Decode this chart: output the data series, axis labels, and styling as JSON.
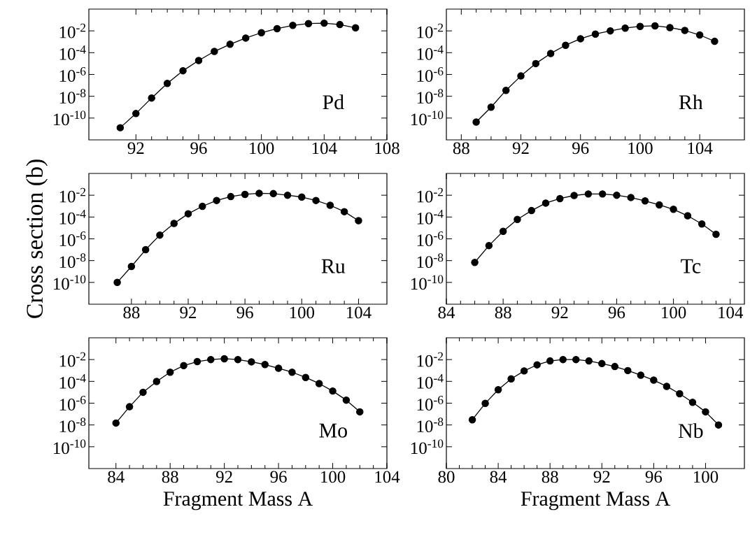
{
  "chart_data": [
    {
      "type": "line",
      "x": [
        91,
        92,
        93,
        94,
        95,
        96,
        97,
        98,
        99,
        100,
        101,
        102,
        103,
        104,
        105,
        106
      ],
      "values": [
        1.3e-11,
        2.6e-10,
        6.9e-09,
        1.5e-07,
        2.2e-06,
        1.9e-05,
        0.00013,
        0.00059,
        0.0022,
        0.0068,
        0.016,
        0.032,
        0.047,
        0.051,
        0.038,
        0.019
      ],
      "color": "#000000",
      "marker": "circle",
      "line_style": "solid",
      "log": "y",
      "annotations": [
        "Pd"
      ],
      "xlim": [
        89,
        108
      ],
      "xticks": [
        92,
        96,
        100,
        104,
        108
      ],
      "ylim": [
        1e-12,
        1
      ],
      "yticks": [
        {
          "value": 0.01,
          "label": "10$^{-2}$"
        },
        {
          "value": 0.0001,
          "label": "10$^{-4}$"
        },
        {
          "value": 1e-06,
          "label": "10$^{-6}$"
        },
        {
          "value": 1e-08,
          "label": "10$^{-8}$"
        },
        {
          "value": 1e-10,
          "label": "10$^{-10}$"
        }
      ]
    },
    {
      "type": "line",
      "x": [
        89,
        90,
        91,
        92,
        93,
        94,
        95,
        96,
        97,
        98,
        99,
        100,
        101,
        102,
        103,
        104,
        105
      ],
      "values": [
        4.3e-11,
        1e-09,
        3.5e-08,
        7.3e-07,
        1e-05,
        8.5e-05,
        0.00048,
        0.0019,
        0.0051,
        0.01,
        0.018,
        0.026,
        0.029,
        0.02,
        0.011,
        0.0042,
        0.0011
      ],
      "color": "#000000",
      "marker": "circle",
      "line_style": "solid",
      "log": "y",
      "annotations": [
        "Rh"
      ],
      "xlim": [
        87,
        107
      ],
      "xticks": [
        88,
        92,
        96,
        100,
        104
      ],
      "ylim": [
        1e-12,
        1
      ],
      "yticks": [
        {
          "value": 0.01,
          "label": "10$^{-2}$"
        },
        {
          "value": 0.0001,
          "label": "10$^{-4}$"
        },
        {
          "value": 1e-06,
          "label": "10$^{-6}$"
        },
        {
          "value": 1e-08,
          "label": "10$^{-8}$"
        },
        {
          "value": 1e-10,
          "label": "10$^{-10}$"
        }
      ]
    },
    {
      "type": "line",
      "x": [
        87,
        88,
        89,
        90,
        91,
        92,
        93,
        94,
        95,
        96,
        97,
        98,
        99,
        100,
        101,
        102,
        103,
        104
      ],
      "values": [
        1e-10,
        2.9e-09,
        1e-07,
        2.2e-06,
        2.6e-05,
        0.0002,
        0.00096,
        0.0033,
        0.0075,
        0.012,
        0.015,
        0.014,
        0.01,
        0.0068,
        0.0033,
        0.0012,
        0.00031,
        4.6e-05
      ],
      "color": "#000000",
      "marker": "circle",
      "line_style": "solid",
      "log": "y",
      "ylabel": "Cross section (b)",
      "annotations": [
        "Ru"
      ],
      "xlim": [
        85,
        106
      ],
      "xticks": [
        88,
        92,
        96,
        100,
        104
      ],
      "ylim": [
        1e-12,
        1
      ],
      "yticks": [
        {
          "value": 0.01,
          "label": "10$^{-2}$"
        },
        {
          "value": 0.0001,
          "label": "10$^{-4}$"
        },
        {
          "value": 1e-06,
          "label": "10$^{-6}$"
        },
        {
          "value": 1e-08,
          "label": "10$^{-8}$"
        },
        {
          "value": 1e-10,
          "label": "10$^{-10}$"
        }
      ]
    },
    {
      "type": "line",
      "x": [
        86,
        87,
        88,
        89,
        90,
        91,
        92,
        93,
        94,
        95,
        96,
        97,
        98,
        99,
        100,
        101,
        102,
        103
      ],
      "values": [
        6.8e-09,
        2.4e-07,
        4.9e-06,
        6e-05,
        0.00039,
        0.0019,
        0.0049,
        0.0095,
        0.013,
        0.013,
        0.01,
        0.0062,
        0.003,
        0.0013,
        0.00051,
        0.00013,
        2.3e-05,
        2.6e-06
      ],
      "color": "#000000",
      "marker": "circle",
      "line_style": "solid",
      "log": "y",
      "annotations": [
        "Tc"
      ],
      "xlim": [
        84,
        105
      ],
      "xticks": [
        84,
        88,
        92,
        96,
        100,
        104
      ],
      "ylim": [
        1e-12,
        1
      ],
      "yticks": [
        {
          "value": 0.01,
          "label": "10$^{-2}$"
        },
        {
          "value": 0.0001,
          "label": "10$^{-4}$"
        },
        {
          "value": 1e-06,
          "label": "10$^{-6}$"
        },
        {
          "value": 1e-08,
          "label": "10$^{-8}$"
        },
        {
          "value": 1e-10,
          "label": "10$^{-10}$"
        }
      ]
    },
    {
      "type": "line",
      "x": [
        84,
        85,
        86,
        87,
        88,
        89,
        90,
        91,
        92,
        93,
        94,
        95,
        96,
        97,
        98,
        99,
        100,
        101,
        102
      ],
      "values": [
        1.5e-08,
        4.7e-07,
        1e-05,
        9.8e-05,
        0.00069,
        0.0028,
        0.0065,
        0.01,
        0.012,
        0.01,
        0.0062,
        0.0035,
        0.0016,
        0.00069,
        0.00023,
        6.3e-05,
        1.3e-05,
        1.9e-06,
        1.6e-07
      ],
      "color": "#000000",
      "marker": "circle",
      "line_style": "solid",
      "log": "y",
      "xlabel": "Fragment Mass A",
      "annotations": [
        "Mo"
      ],
      "xlim": [
        82,
        104
      ],
      "xticks": [
        84,
        88,
        92,
        96,
        100,
        104
      ],
      "ylim": [
        1e-12,
        1
      ],
      "yticks": [
        {
          "value": 0.01,
          "label": "10$^{-2}$"
        },
        {
          "value": 0.0001,
          "label": "10$^{-4}$"
        },
        {
          "value": 1e-06,
          "label": "10$^{-6}$"
        },
        {
          "value": 1e-08,
          "label": "10$^{-8}$"
        },
        {
          "value": 1e-10,
          "label": "10$^{-10}$"
        }
      ]
    },
    {
      "type": "line",
      "x": [
        82,
        83,
        84,
        85,
        86,
        87,
        88,
        89,
        90,
        91,
        92,
        93,
        94,
        95,
        96,
        97,
        98,
        99,
        100,
        101
      ],
      "values": [
        3e-08,
        9.5e-07,
        1.7e-05,
        0.00017,
        0.00091,
        0.0033,
        0.0075,
        0.01,
        0.01,
        0.0075,
        0.0043,
        0.0023,
        0.00098,
        0.00037,
        0.00013,
        3.5e-05,
        7.4e-06,
        1.2e-06,
        1.6e-07,
        1e-08
      ],
      "color": "#000000",
      "marker": "circle",
      "line_style": "solid",
      "log": "y",
      "xlabel": "Fragment Mass A",
      "annotations": [
        "Nb"
      ],
      "xlim": [
        80,
        103
      ],
      "xticks": [
        80,
        84,
        88,
        92,
        96,
        100
      ],
      "ylim": [
        1e-12,
        1
      ],
      "yticks": [
        {
          "value": 0.01,
          "label": "10$^{-2}$"
        },
        {
          "value": 0.0001,
          "label": "10$^{-4}$"
        },
        {
          "value": 1e-06,
          "label": "10$^{-6}$"
        },
        {
          "value": 1e-08,
          "label": "10$^{-8}$"
        },
        {
          "value": 1e-10,
          "label": "10$^{-10}$"
        }
      ]
    }
  ]
}
